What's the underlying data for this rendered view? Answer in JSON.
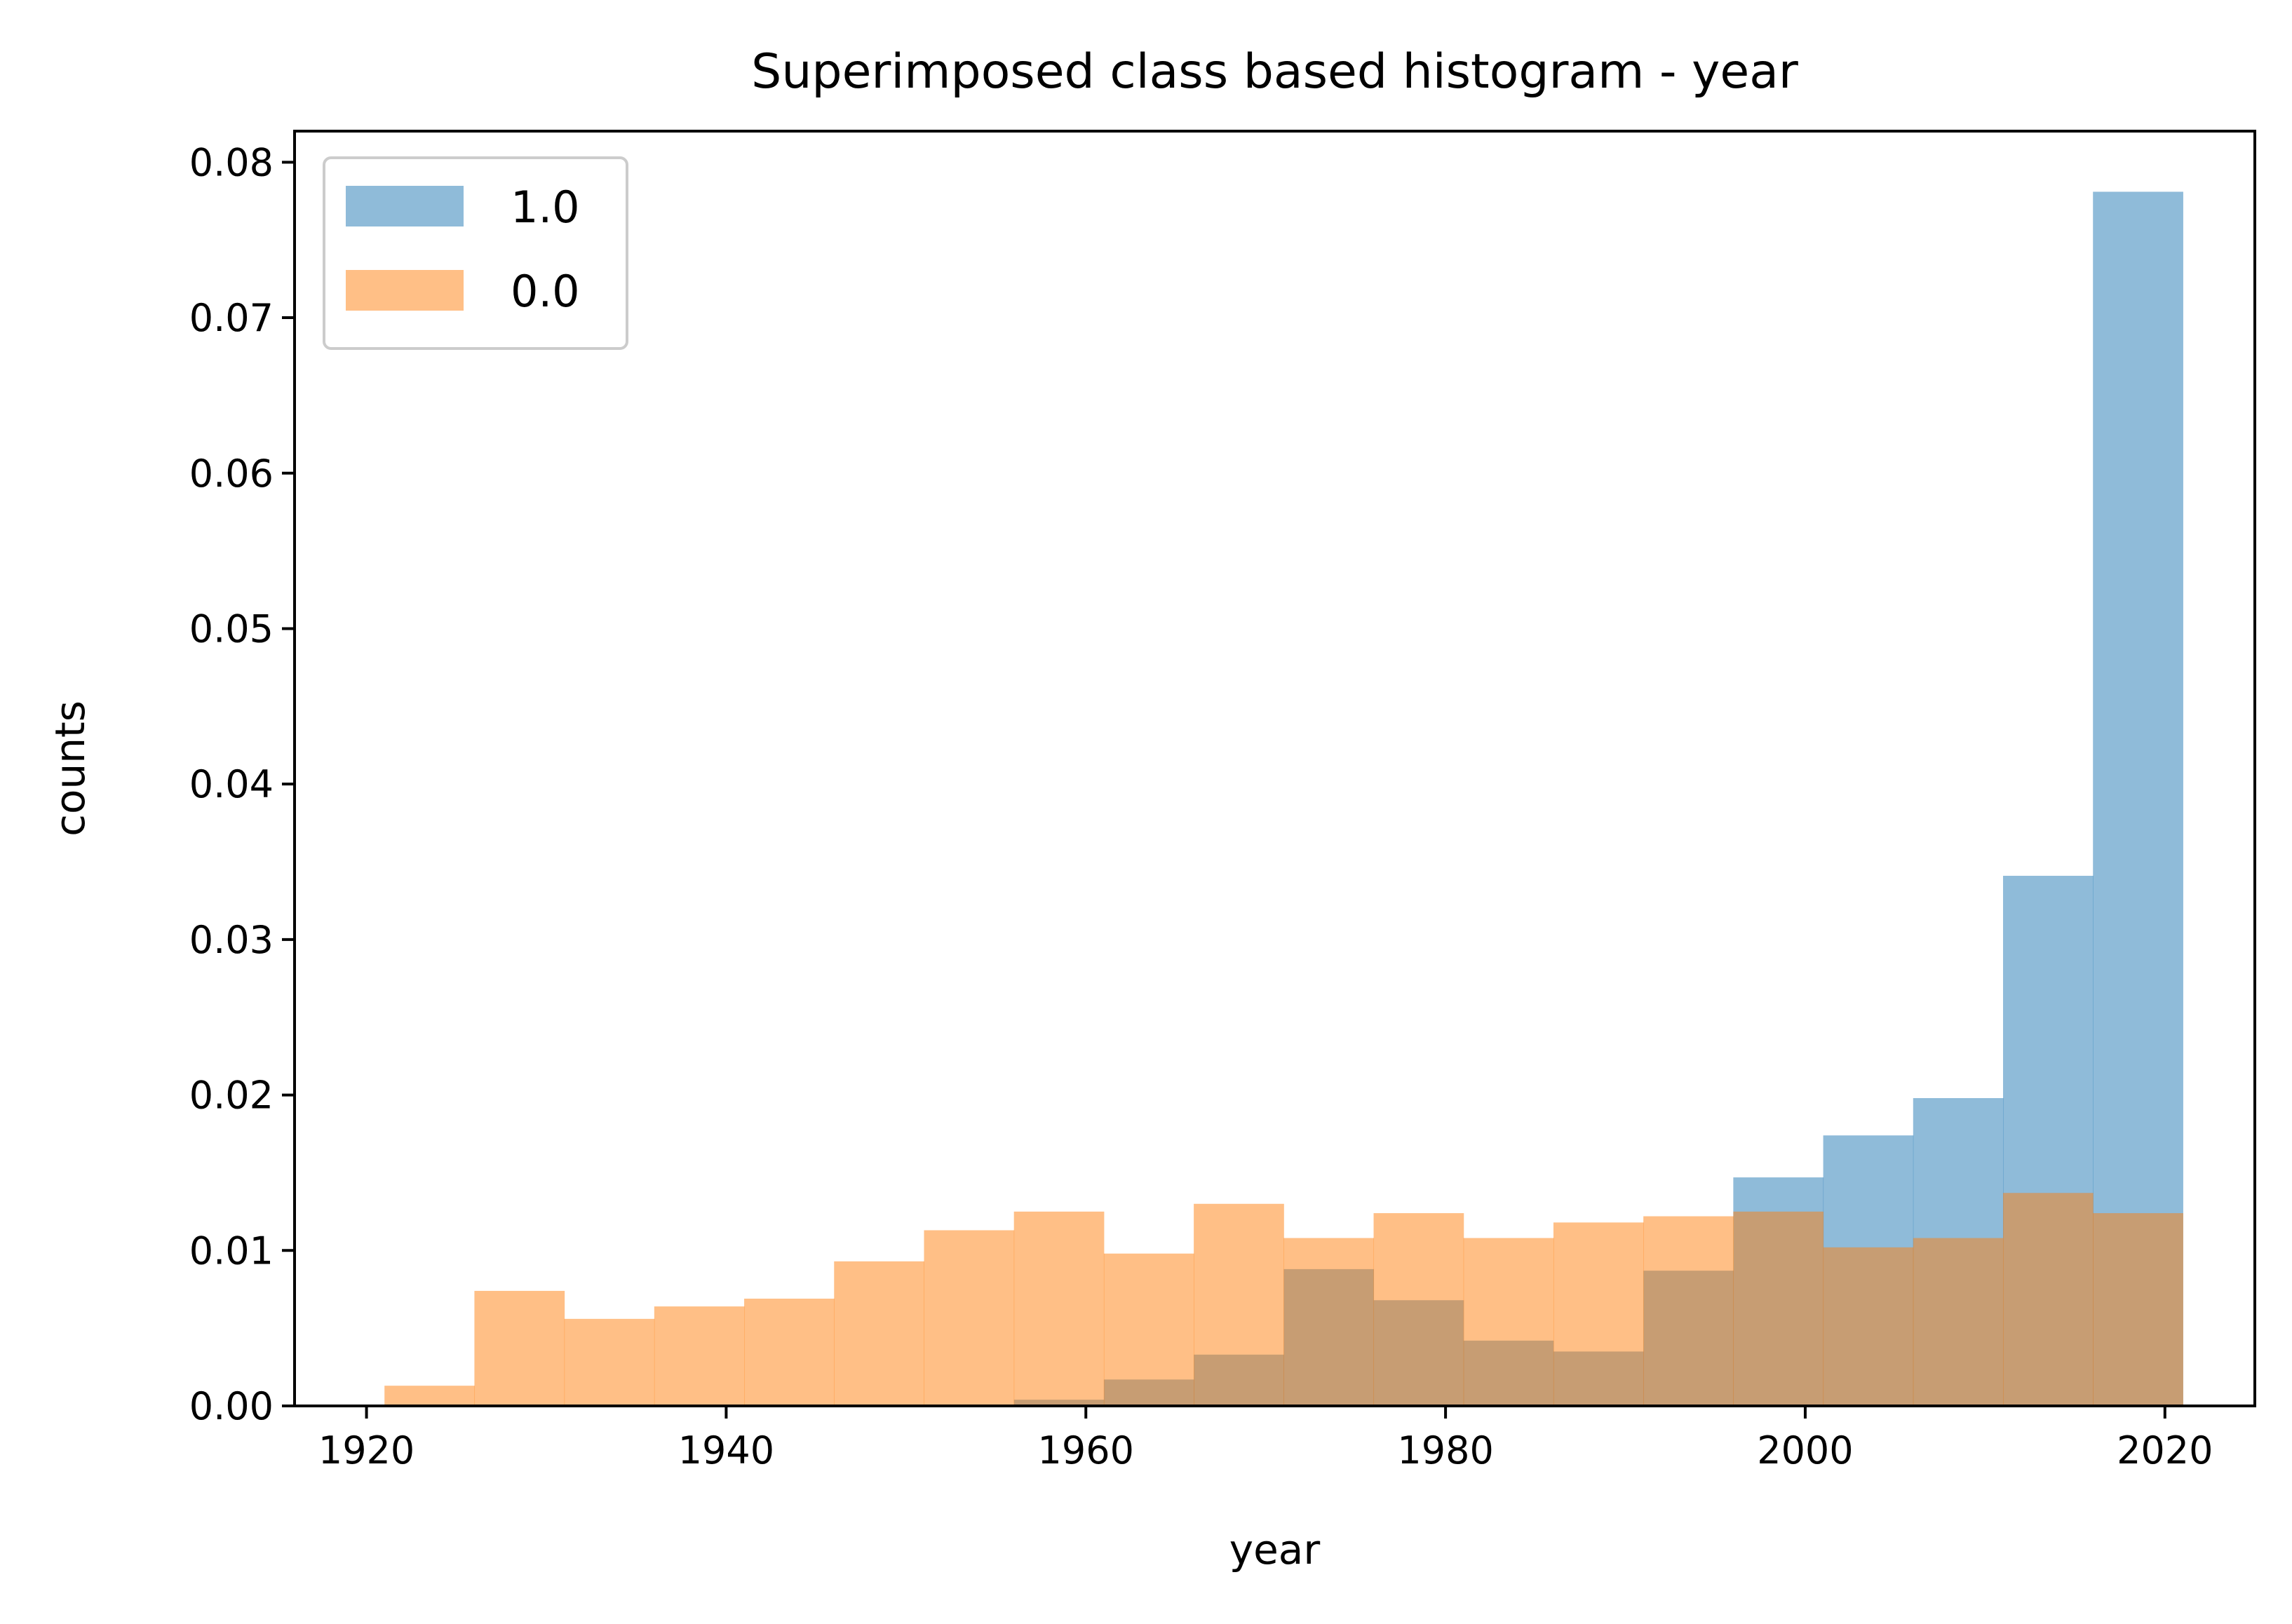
{
  "chart_data": {
    "type": "histogram",
    "title": "Superimposed class based histogram - year",
    "xlabel": "year",
    "ylabel": "counts",
    "xlim": [
      1916,
      2025
    ],
    "ylim": [
      0,
      0.082
    ],
    "xticks": [
      1920,
      1940,
      1960,
      1980,
      2000,
      2020
    ],
    "xtick_labels": [
      "1920",
      "1940",
      "1960",
      "1980",
      "2000",
      "2020"
    ],
    "yticks": [
      0,
      0.01,
      0.02,
      0.03,
      0.04,
      0.05,
      0.06,
      0.07,
      0.08
    ],
    "ytick_labels": [
      "0.00",
      "0.01",
      "0.02",
      "0.03",
      "0.04",
      "0.05",
      "0.06",
      "0.07",
      "0.08"
    ],
    "bin_edges": [
      1921,
      1926,
      1931,
      1936,
      1941,
      1946,
      1951,
      1956,
      1961,
      1966,
      1971,
      1976,
      1981,
      1986,
      1991,
      1996,
      2001,
      2006,
      2011,
      2016,
      2021
    ],
    "legend_position": "top-left",
    "grid": false,
    "series": [
      {
        "name": "1.0",
        "color": "#1f77b4",
        "alpha": 0.5,
        "values": [
          0,
          0,
          0,
          0,
          0,
          0,
          0,
          0.0004,
          0.0017,
          0.0033,
          0.0088,
          0.0068,
          0.0042,
          0.0035,
          0.0087,
          0.0147,
          0.0174,
          0.0198,
          0.0341,
          0.0781
        ]
      },
      {
        "name": "0.0",
        "color": "#ff7f0e",
        "alpha": 0.5,
        "values": [
          0.0013,
          0.0074,
          0.0056,
          0.0064,
          0.0069,
          0.0093,
          0.0113,
          0.0125,
          0.0098,
          0.013,
          0.0108,
          0.0124,
          0.0108,
          0.0118,
          0.0122,
          0.0125,
          0.0102,
          0.0108,
          0.0137,
          0.0124
        ]
      }
    ]
  }
}
